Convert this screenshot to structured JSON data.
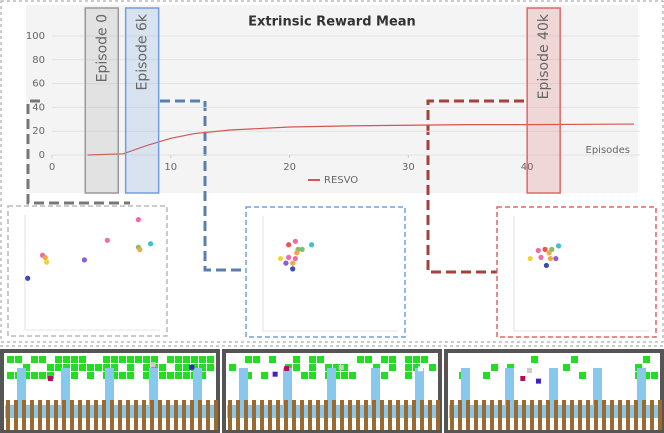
{
  "chart_data": [
    {
      "type": "line",
      "title": "Extrinsic Reward Mean",
      "xlabel": "Episodes",
      "xlim": [
        0,
        49.5
      ],
      "ylim": [
        0,
        100
      ],
      "xticks": [
        0,
        10,
        20,
        30,
        40
      ],
      "yticks": [
        0,
        20,
        40,
        60,
        80,
        100
      ],
      "grid": true,
      "x": [
        3,
        6,
        8,
        10,
        12,
        15,
        20,
        25,
        30,
        35,
        40,
        45,
        49
      ],
      "series": [
        {
          "name": "RESVO",
          "color": "#d9534f",
          "values": [
            0,
            1,
            8,
            14,
            18,
            21,
            23.5,
            24.5,
            25,
            25.5,
            25.5,
            25.8,
            26
          ]
        }
      ],
      "annotations": [
        {
          "text": "Episode 0",
          "x": 2.8,
          "color": "#999999"
        },
        {
          "text": "Episode 6k",
          "x": 6.2,
          "color": "#6f9fe0"
        },
        {
          "text": "Episode 40k",
          "x": 40,
          "color": "#e06666"
        }
      ]
    },
    {
      "type": "scatter",
      "xlim": [
        0,
        1
      ],
      "ylim": [
        0,
        1
      ],
      "frame": "#bbbbbb",
      "x": [
        0.84,
        0.61,
        0.93,
        0.84,
        0.85,
        0.13,
        0.15,
        0.44,
        0.16,
        0.02
      ],
      "y": [
        0.96,
        0.78,
        0.75,
        0.72,
        0.7,
        0.65,
        0.63,
        0.61,
        0.59,
        0.45
      ],
      "colors": [
        "#f06aa8",
        "#f06aa8",
        "#3ec1d3",
        "#7cc26b",
        "#f5a742",
        "#f06aa8",
        "#f5a742",
        "#8a5cd6",
        "#f2d23a",
        "#3a4ab8"
      ]
    },
    {
      "type": "scatter",
      "xlim": [
        0,
        1
      ],
      "ylim": [
        0,
        1
      ],
      "frame": "#6f9fe0",
      "x": [
        0.24,
        0.19,
        0.36,
        0.26,
        0.29,
        0.25,
        0.13,
        0.19,
        0.22,
        0.17,
        0.24,
        0.22
      ],
      "y": [
        0.78,
        0.75,
        0.75,
        0.71,
        0.71,
        0.68,
        0.63,
        0.64,
        0.59,
        0.59,
        0.63,
        0.54
      ],
      "colors": [
        "#f06aa8",
        "#e8574e",
        "#3ec1d3",
        "#7cc26b",
        "#7cc26b",
        "#f5a742",
        "#f2d23a",
        "#f06aa8",
        "#f5a742",
        "#8a5cd6",
        "#f06aa8",
        "#3a4ab8"
      ]
    },
    {
      "type": "scatter",
      "xlim": [
        0,
        1
      ],
      "ylim": [
        0,
        1
      ],
      "frame": "#e06666",
      "x": [
        0.18,
        0.23,
        0.33,
        0.28,
        0.26,
        0.12,
        0.2,
        0.27,
        0.31,
        0.24
      ],
      "y": [
        0.7,
        0.71,
        0.74,
        0.71,
        0.68,
        0.63,
        0.64,
        0.63,
        0.63,
        0.57
      ],
      "colors": [
        "#f06aa8",
        "#e8574e",
        "#3ec1d3",
        "#7cc26b",
        "#f5a742",
        "#f2d23a",
        "#f06aa8",
        "#f5a742",
        "#8a5cd6",
        "#3a4ab8"
      ]
    }
  ]
}
